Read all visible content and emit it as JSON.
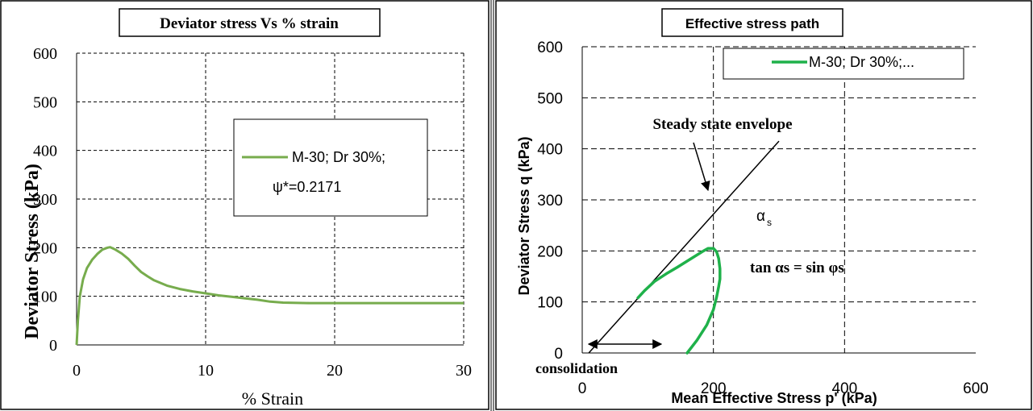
{
  "chart_data": [
    {
      "type": "line",
      "title": "Deviator stress Vs % strain",
      "xlabel": "% Strain",
      "ylabel": "Deviator Stress (kPa)",
      "xlim": [
        0,
        30
      ],
      "ylim": [
        0,
        600
      ],
      "xticks": [
        "0",
        "10",
        "20",
        "30"
      ],
      "yticks": [
        "0",
        "100",
        "200",
        "300",
        "400",
        "500",
        "600"
      ],
      "grid": "dashed",
      "legend": {
        "position": "right-center",
        "entries": [
          "M-30; Dr 30%;",
          "ψ*=0.2171"
        ]
      },
      "series": [
        {
          "name": "M-30; Dr 30%; ψ*=0.2171",
          "color": "#77ac4d",
          "x": [
            0,
            0.1,
            0.25,
            0.5,
            0.8,
            1.2,
            1.6,
            2.0,
            2.4,
            2.6,
            3.0,
            3.5,
            4.0,
            4.5,
            5.0,
            5.5,
            6.0,
            7.0,
            8.0,
            9.0,
            10.0,
            11.0,
            12.0,
            13.0,
            14.0,
            15.0,
            16.0,
            18.0,
            20.0,
            25.0,
            30.0
          ],
          "y": [
            0,
            50,
            100,
            135,
            158,
            175,
            187,
            196,
            200,
            201,
            196,
            188,
            177,
            163,
            150,
            141,
            133,
            122,
            115,
            110,
            106,
            102,
            99,
            96,
            93,
            89,
            87,
            86,
            86,
            86,
            86
          ]
        }
      ]
    },
    {
      "type": "line",
      "title": "Effective stress path",
      "xlabel": "Mean Effective Stress p' (kPa)",
      "ylabel": "Deviator Stress q (kPa)",
      "xlim": [
        0,
        600
      ],
      "ylim": [
        0,
        600
      ],
      "xticks": [
        "0",
        "200",
        "400",
        "600"
      ],
      "yticks": [
        "0",
        "100",
        "200",
        "300",
        "400",
        "500",
        "600"
      ],
      "grid": "dashed",
      "legend": {
        "position": "top-right",
        "entries": [
          "M-30; Dr 30%;..."
        ]
      },
      "series": [
        {
          "name": "M-30; Dr 30%;...",
          "color": "#1fb14a",
          "x": [
            160,
            175,
            190,
            200,
            205,
            208,
            210,
            210,
            208,
            205,
            200,
            192,
            185,
            175,
            160,
            145,
            128,
            110,
            95,
            85
          ],
          "y": [
            0,
            25,
            55,
            85,
            110,
            130,
            145,
            165,
            185,
            198,
            205,
            205,
            200,
            192,
            180,
            168,
            155,
            140,
            122,
            108
          ]
        },
        {
          "name": "Steady state envelope",
          "color": "#000000",
          "x": [
            10,
            300
          ],
          "y": [
            0,
            415
          ]
        }
      ],
      "annotations": [
        {
          "text": "Steady state envelope"
        },
        {
          "text": "α"
        },
        {
          "text": "s"
        },
        {
          "text": "tan αs = sin φs"
        },
        {
          "text": "consolidation"
        }
      ]
    }
  ]
}
